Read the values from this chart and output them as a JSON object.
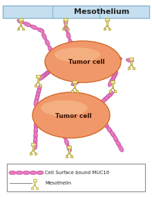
{
  "bg_color": "#ffffff",
  "mesothelium_fill": "#c5dff0",
  "mesothelium_edge": "#8ab4cc",
  "tumor_cell_fill": "#f0986a",
  "tumor_cell_edge": "#d06828",
  "muc16_fill": "#e87abf",
  "muc16_edge": "#c050a0",
  "mesothelin_fill": "#eeeaa0",
  "mesothelin_edge": "#b8a840",
  "title": "Mesothelium",
  "label1": "Tumor cell",
  "label2": "Tumor cell",
  "legend_muc16": "Cell Surface bound MUC16",
  "legend_mesothelin": "Mesothelin",
  "fig_width": 2.2,
  "fig_height": 2.84,
  "dpi": 100
}
